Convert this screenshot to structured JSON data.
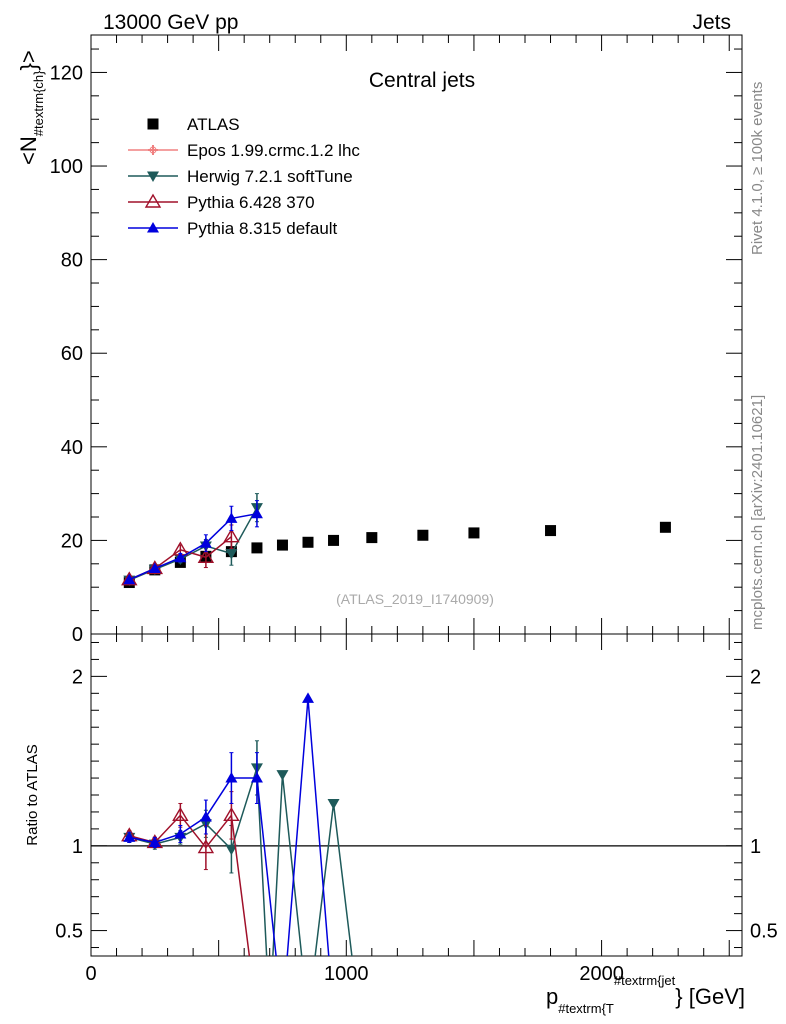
{
  "header": {
    "left": "13000 GeV pp",
    "right": "Jets"
  },
  "side_text": {
    "rivet": "Rivet 4.1.0, ≥ 100k events",
    "mcplots": "mcplots.cern.ch [arXiv:2401.10621]"
  },
  "colors": {
    "atlas": "#000000",
    "epos": "#f08080",
    "herwig": "#1e5a5a",
    "pythia6": "#a0102a",
    "pythia8": "#0000dd"
  },
  "chart_data": [
    {
      "type": "scatter",
      "panel": "main",
      "title": "Central jets",
      "watermark": "(ATLAS_2019_I1740909)",
      "xlabel": "p_{#textrm{T}}^{#textrm{jet}} [GeV]",
      "xlabel_main": "p",
      "xlabel_sub": "#textrm{T",
      "xlabel_sup": "#textrm{jet",
      "xlabel_tail": "} [GeV]",
      "ylabel": "<N_{#textrm{ch}}>",
      "ylabel_main": "<N",
      "ylabel_sub": "#textrm{ch}",
      "ylabel_tail": "}>",
      "xlim": [
        0,
        2550
      ],
      "ylim": [
        0,
        128
      ],
      "yticks": [
        0,
        20,
        40,
        60,
        80,
        100,
        120
      ],
      "legend_position": "top-left",
      "series": [
        {
          "name": "ATLAS",
          "marker": "square",
          "x": [
            150,
            250,
            350,
            450,
            550,
            650,
            750,
            850,
            950,
            1100,
            1300,
            1500,
            1800,
            2250
          ],
          "y": [
            11.0,
            13.7,
            15.3,
            16.6,
            17.6,
            18.4,
            19.0,
            19.6,
            20.0,
            20.6,
            21.1,
            21.6,
            22.1,
            22.8
          ],
          "err": [
            0.3,
            0.3,
            0.3,
            0.3,
            0.3,
            0.3,
            0.3,
            0.3,
            0.3,
            0.3,
            0.3,
            0.3,
            0.3,
            0.3
          ]
        },
        {
          "name": "Epos 1.99.crmc.1.2 lhc",
          "marker": "cross",
          "x": [],
          "y": [],
          "err": []
        },
        {
          "name": "Herwig 7.2.1 softTune",
          "marker": "triangle-down",
          "x": [
            150,
            250,
            350,
            450,
            550,
            650
          ],
          "y": [
            11.5,
            13.8,
            16.0,
            18.8,
            17.2,
            27.0
          ],
          "err": [
            0.5,
            0.6,
            0.8,
            1.4,
            2.5,
            3.0
          ]
        },
        {
          "name": "Pythia 6.428 370",
          "marker": "triangle-up-open",
          "x": [
            150,
            250,
            350,
            450,
            550
          ],
          "y": [
            11.6,
            14.0,
            18.0,
            16.4,
            20.8
          ],
          "err": [
            0.5,
            0.6,
            1.0,
            2.2,
            2.5
          ]
        },
        {
          "name": "Pythia 8.315 default",
          "marker": "triangle-up",
          "x": [
            150,
            250,
            350,
            450,
            550,
            650
          ],
          "y": [
            11.6,
            14.0,
            16.3,
            19.4,
            24.7,
            25.7
          ],
          "err": [
            0.5,
            0.6,
            0.9,
            1.8,
            2.6,
            2.8
          ]
        }
      ]
    },
    {
      "type": "line",
      "panel": "ratio",
      "ylabel": "Ratio to ATLAS",
      "xlim": [
        0,
        2550
      ],
      "ylim": [
        0.35,
        2.25
      ],
      "yticks": [
        0.5,
        1,
        2
      ],
      "xticks": [
        0,
        1000,
        2000
      ],
      "reference_line": 1,
      "series": [
        {
          "name": "Herwig 7.2.1 softTune",
          "x": [
            150,
            250,
            350,
            450,
            550,
            650,
            700,
            750,
            850,
            950,
            1050
          ],
          "y": [
            1.05,
            1.01,
            1.05,
            1.13,
            0.98,
            1.46,
            0.0,
            1.42,
            0.0,
            1.25,
            0.0
          ],
          "err": [
            0.03,
            0.03,
            0.04,
            0.08,
            0.14,
            0.16,
            0,
            0,
            0,
            0,
            0
          ]
        },
        {
          "name": "Pythia 6.428 370",
          "x": [
            150,
            250,
            350,
            450,
            550,
            650
          ],
          "y": [
            1.06,
            1.02,
            1.18,
            0.99,
            1.18,
            0.0
          ],
          "err": [
            0.03,
            0.03,
            0.07,
            0.13,
            0.14,
            0
          ]
        },
        {
          "name": "Pythia 8.315 default",
          "x": [
            150,
            250,
            350,
            450,
            550,
            650,
            750,
            850,
            950
          ],
          "y": [
            1.05,
            1.02,
            1.07,
            1.17,
            1.4,
            1.4,
            0.0,
            1.87,
            0.0
          ],
          "err": [
            0.03,
            0.03,
            0.05,
            0.1,
            0.15,
            0.15,
            0,
            0,
            0
          ]
        }
      ]
    }
  ]
}
